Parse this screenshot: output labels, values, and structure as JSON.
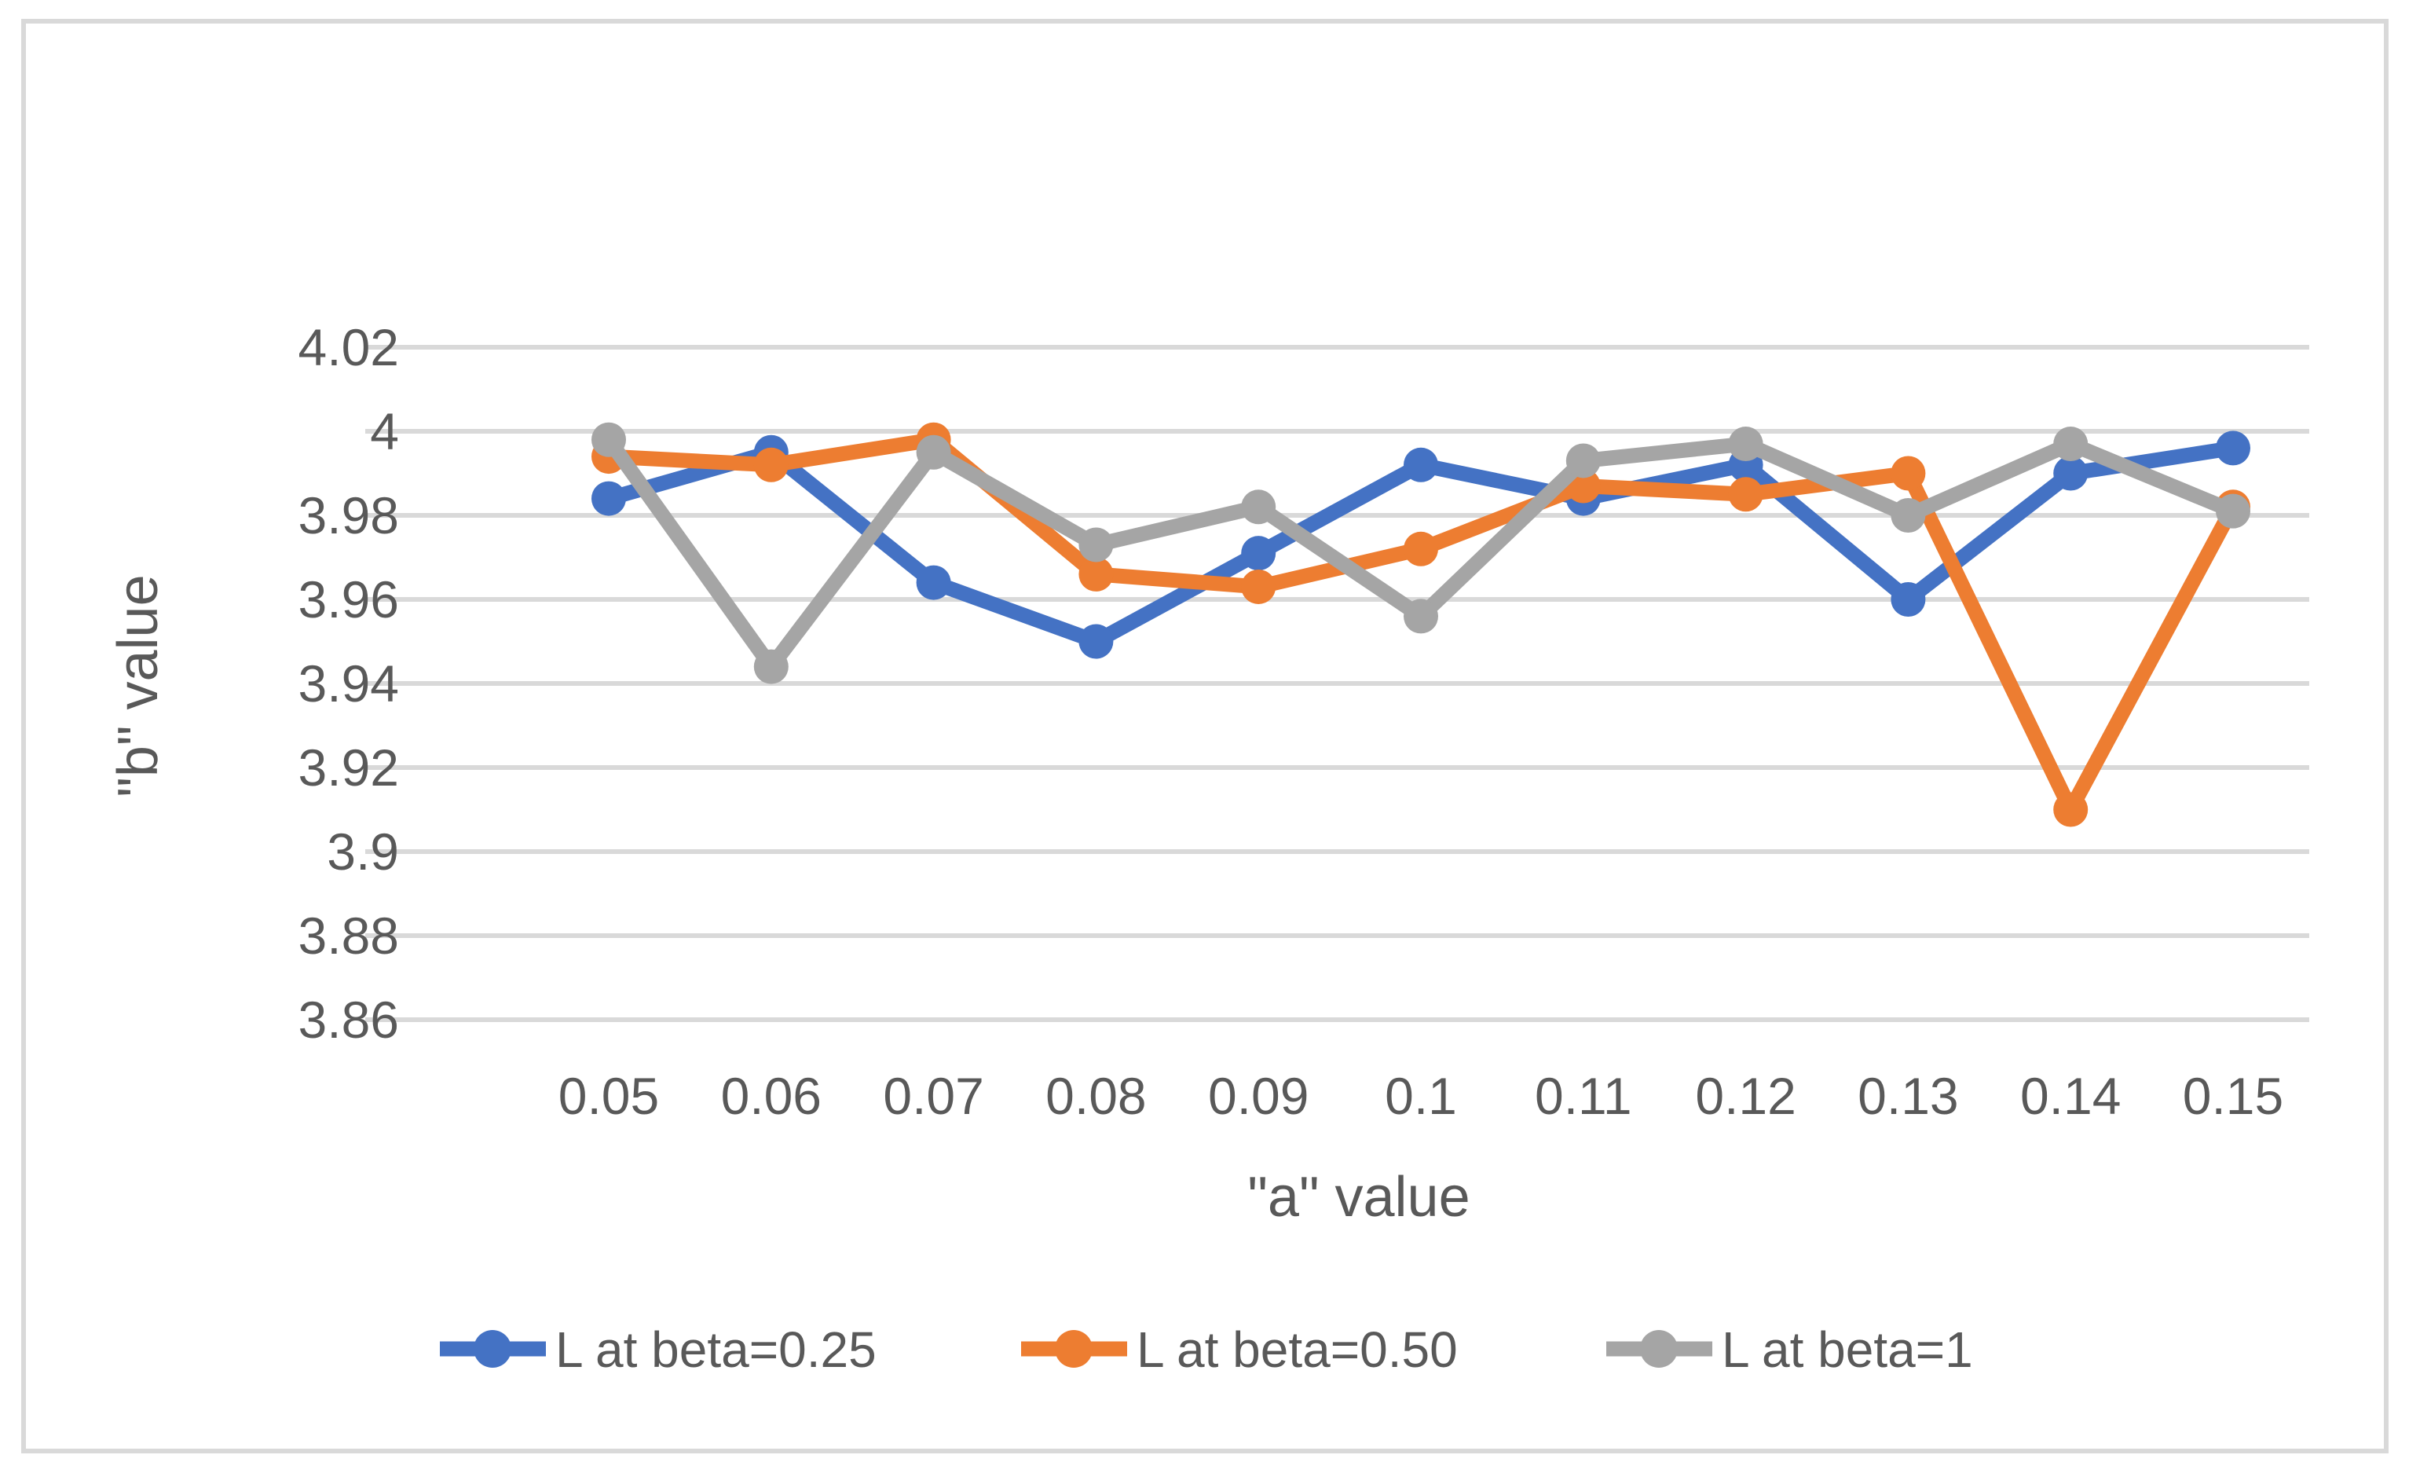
{
  "chart_data": {
    "type": "line",
    "title": "",
    "xlabel": "\"a\" value",
    "ylabel": "\"b\" value",
    "categories": [
      "0.05",
      "0.06",
      "0.07",
      "0.08",
      "0.09",
      "0.1",
      "0.11",
      "0.12",
      "0.13",
      "0.14",
      "0.15"
    ],
    "x_values": [
      0.05,
      0.06,
      0.07,
      0.08,
      0.09,
      0.1,
      0.11,
      0.12,
      0.13,
      0.14,
      0.15
    ],
    "series": [
      {
        "name": "L at beta=0.25",
        "color": "#4472C4",
        "values": [
          3.984,
          3.995,
          3.964,
          3.95,
          3.971,
          3.992,
          3.984,
          3.992,
          3.96,
          3.99,
          3.996
        ]
      },
      {
        "name": "L at beta=0.50",
        "color": "#ED7D31",
        "values": [
          3.994,
          3.992,
          3.998,
          3.966,
          3.963,
          3.972,
          3.987,
          3.985,
          3.99,
          3.91,
          3.982
        ]
      },
      {
        "name": "L at beta=1",
        "color": "#A5A5A5",
        "values": [
          3.998,
          3.944,
          3.995,
          3.973,
          3.982,
          3.956,
          3.993,
          3.997,
          3.98,
          3.997,
          3.981
        ]
      }
    ],
    "y_ticks": [
      "4.02",
      "4",
      "3.98",
      "3.96",
      "3.94",
      "3.92",
      "3.9",
      "3.88",
      "3.86"
    ],
    "y_tick_values": [
      4.02,
      4.0,
      3.98,
      3.96,
      3.94,
      3.92,
      3.9,
      3.88,
      3.86
    ],
    "ylim": [
      3.86,
      4.02
    ],
    "grid": true,
    "legend_position": "bottom",
    "colors": {
      "gridline": "#D9D9D9",
      "chart_border": "#D9D9D9",
      "axis_text": "#595959",
      "background": "#FFFFFF"
    }
  }
}
